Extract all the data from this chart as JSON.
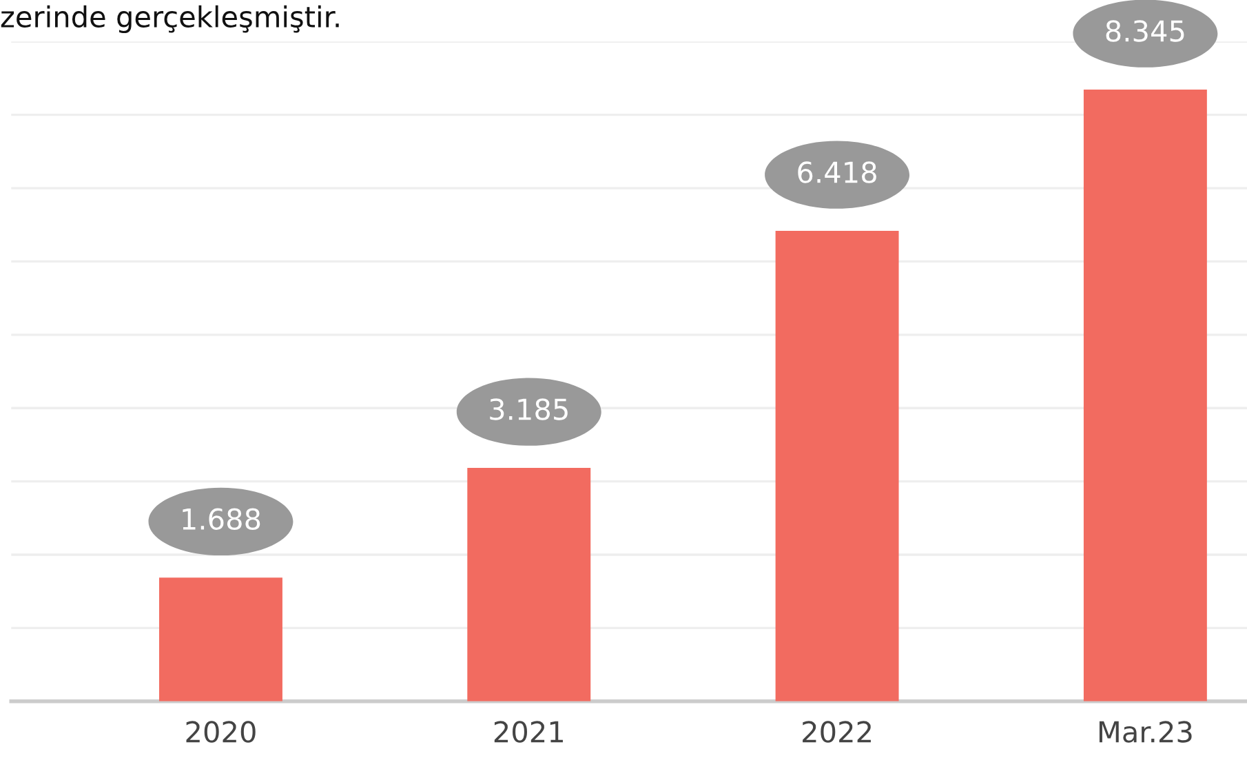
{
  "chart_data": {
    "type": "bar",
    "title": "zerinde gerçekleşmiştir.",
    "categories": [
      "2020",
      "2021",
      "2022",
      "Mar.23"
    ],
    "values": [
      1.688,
      3.185,
      6.418,
      8.345
    ],
    "color": "#f26b60",
    "ylim": [
      0,
      9
    ],
    "yticks": [
      {
        "value": 0,
        "label": null
      },
      {
        "value": 1,
        "label": null
      },
      {
        "value": 2,
        "label": null
      },
      {
        "value": 3,
        "label": null
      },
      {
        "value": 4,
        "label": null
      },
      {
        "value": 5,
        "label": null
      },
      {
        "value": 6,
        "label": null
      },
      {
        "value": 7,
        "label": null
      },
      {
        "value": 8,
        "label": null
      },
      {
        "value": 9,
        "label": null
      }
    ],
    "tick_labels": "x",
    "grid": "y",
    "data_labels": true,
    "legend": false
  }
}
